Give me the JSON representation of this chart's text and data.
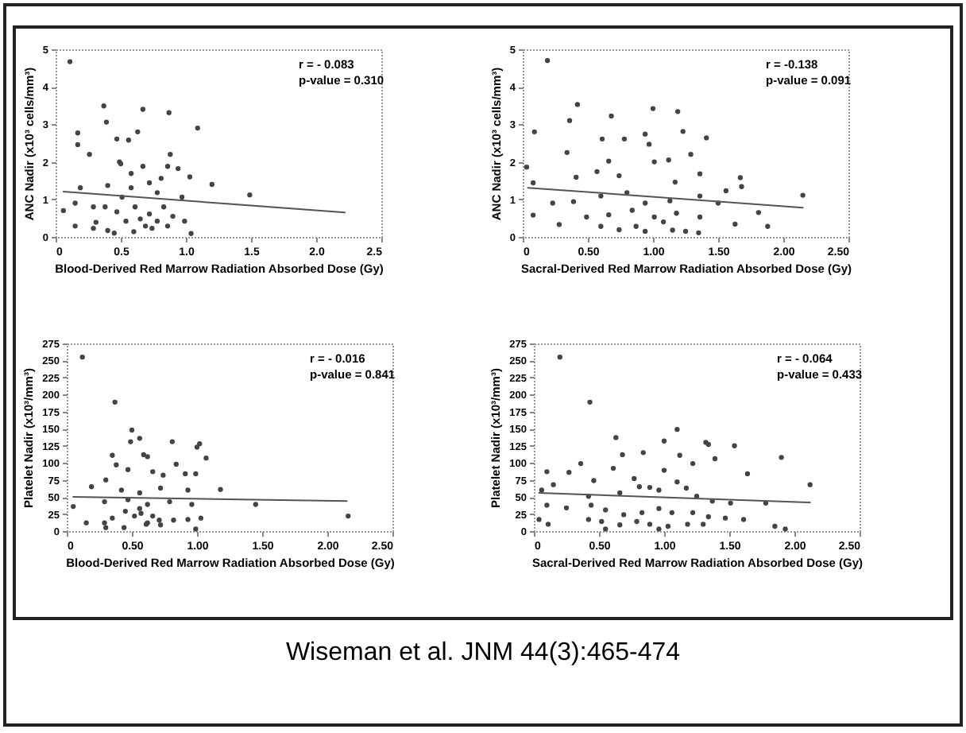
{
  "chart_data": [
    {
      "type": "scatter",
      "xlabel": "Blood-Derived Red Marrow Radiation Absorbed Dose (Gy)",
      "ylabel": "ANC Nadir (x10³ cells/mm³)",
      "xlim": [
        0,
        2.5
      ],
      "xticks": [
        0,
        0.5,
        {
          "value": 1,
          "label": "1.0"
        },
        1.5,
        {
          "value": 2,
          "label": "2.0"
        },
        2.5
      ],
      "ylim": [
        0,
        5
      ],
      "yticks": [
        0,
        1,
        2,
        3,
        4,
        5
      ],
      "marker": "circle",
      "annotations": [
        "r = - 0.083",
        "p-value = 0.310"
      ],
      "series": [
        {
          "type": "scatter",
          "color": "#444444",
          "x": [
            0.11,
            0.37,
            0.39,
            0.67,
            0.87,
            1.09,
            0.17,
            0.17,
            0.47,
            0.56,
            0.63,
            0.26,
            0.49,
            0.5,
            0.88,
            0.67,
            0.86,
            0.94,
            1.03,
            1.2,
            1.49,
            0.58,
            0.72,
            0.81,
            0.58,
            0.19,
            0.4,
            0.51,
            0.78,
            0.97,
            0.06,
            0.15,
            0.29,
            0.47,
            0.61,
            0.72,
            0.9,
            0.99,
            0.15,
            0.29,
            0.4,
            0.45,
            0.6,
            0.69,
            0.74,
            1.04,
            0.31,
            0.54,
            0.65,
            0.83,
            0.38,
            0.78,
            0.86
          ],
          "values": [
            4.67,
            3.49,
            3.06,
            3.4,
            3.31,
            2.9,
            2.77,
            2.46,
            2.61,
            2.58,
            2.8,
            2.2,
            2.0,
            1.95,
            2.2,
            1.88,
            1.88,
            1.82,
            1.6,
            1.4,
            1.12,
            1.69,
            1.44,
            1.56,
            1.31,
            1.31,
            1.37,
            1.06,
            1.18,
            1.06,
            0.7,
            0.9,
            0.8,
            0.67,
            0.8,
            0.61,
            0.55,
            0.42,
            0.29,
            0.23,
            0.17,
            0.1,
            0.14,
            0.29,
            0.23,
            0.09,
            0.39,
            0.42,
            0.48,
            0.8,
            0.8,
            0.42,
            0.29
          ]
        },
        {
          "type": "line",
          "color": "#555555",
          "marker": "none",
          "x": [
            0.06,
            2.22
          ],
          "values": [
            1.21,
            0.65
          ]
        }
      ]
    },
    {
      "type": "scatter",
      "xlabel": "Sacral-Derived Red Marrow Radiation Absorbed Dose (Gy)",
      "ylabel": "ANC Nadir (x10³ cells/mm³)",
      "xlim": [
        0,
        2.5
      ],
      "xticks": [
        0,
        {
          "value": 0.5,
          "label": "0.50"
        },
        {
          "value": 1,
          "label": "1.00"
        },
        {
          "value": 1.5,
          "label": "1.50"
        },
        {
          "value": 2,
          "label": "2.00"
        },
        {
          "value": 2.5,
          "label": "2.50"
        }
      ],
      "ylim": [
        0,
        5
      ],
      "yticks": [
        0,
        1,
        2,
        3,
        4,
        5
      ],
      "marker": "circle",
      "annotations": [
        "r = -0.138",
        "p-value = 0.091"
      ],
      "series": [
        {
          "type": "scatter",
          "color": "#444444",
          "x": [
            0.19,
            0.42,
            0.36,
            0.09,
            0.68,
            1.0,
            1.19,
            0.34,
            0.61,
            0.78,
            0.94,
            0.97,
            1.23,
            1.41,
            0.66,
            1.01,
            1.12,
            1.29,
            0.57,
            0.41,
            0.03,
            1.67,
            1.68,
            1.56,
            2.15,
            0.08,
            0.74,
            1.17,
            1.36,
            0.23,
            0.39,
            0.6,
            0.8,
            0.94,
            1.13,
            1.36,
            1.5,
            0.08,
            0.28,
            0.49,
            0.66,
            0.84,
            1.01,
            1.18,
            1.36,
            1.63,
            1.81,
            1.88,
            0.6,
            0.74,
            0.94,
            1.15,
            1.25,
            1.35,
            1.08,
            0.87
          ],
          "values": [
            4.7,
            3.53,
            3.1,
            2.8,
            3.22,
            3.42,
            3.34,
            2.25,
            2.61,
            2.61,
            2.74,
            2.47,
            2.81,
            2.64,
            2.02,
            2.0,
            2.05,
            2.2,
            1.74,
            1.59,
            1.86,
            1.58,
            1.34,
            1.23,
            1.11,
            1.44,
            1.63,
            1.46,
            1.68,
            0.9,
            0.94,
            1.09,
            1.18,
            0.9,
            0.96,
            1.09,
            0.9,
            0.58,
            0.33,
            0.53,
            0.59,
            0.71,
            0.53,
            0.63,
            0.53,
            0.34,
            0.65,
            0.28,
            0.28,
            0.19,
            0.15,
            0.18,
            0.15,
            0.11,
            0.4,
            0.28
          ]
        },
        {
          "type": "line",
          "color": "#555555",
          "marker": "none",
          "x": [
            0.04,
            2.15
          ],
          "values": [
            1.31,
            0.78
          ]
        }
      ]
    },
    {
      "type": "scatter",
      "xlabel": "Blood-Derived Red Marrow Radiation Absorbed Dose (Gy)",
      "ylabel": "Platelet Nadir (x10³/mm³)",
      "xlim": [
        0,
        2.5
      ],
      "xticks": [
        0,
        {
          "value": 0.5,
          "label": "0.50"
        },
        {
          "value": 1,
          "label": "1.00"
        },
        {
          "value": 1.5,
          "label": "1.50"
        },
        {
          "value": 2,
          "label": "2.00"
        },
        {
          "value": 2.5,
          "label": "2.50"
        }
      ],
      "ylim": [
        0,
        275
      ],
      "yticks": [
        0,
        25,
        50,
        75,
        100,
        125,
        150,
        175,
        200,
        225,
        250,
        275
      ],
      "marker": "circle",
      "annotations": [
        "r = - 0.016",
        "p-value = 0.841"
      ],
      "series": [
        {
          "type": "scatter",
          "color": "#444444",
          "x": [
            0.12,
            0.37,
            0.5,
            0.56,
            0.49,
            0.59,
            0.62,
            0.81,
            1.02,
            1.0,
            1.07,
            0.35,
            0.38,
            0.84,
            0.47,
            0.66,
            0.74,
            0.91,
            0.99,
            0.19,
            0.3,
            0.42,
            0.56,
            0.72,
            0.93,
            1.18,
            1.45,
            0.29,
            0.47,
            0.62,
            0.79,
            0.96,
            0.05,
            0.15,
            0.29,
            0.35,
            0.45,
            0.56,
            0.57,
            0.66,
            0.71,
            0.82,
            0.93,
            1.03,
            0.3,
            0.44,
            0.61,
            0.72,
            0.99,
            2.16,
            0.52,
            0.62
          ],
          "values": [
            255,
            189,
            148,
            136,
            131,
            112,
            109,
            131,
            128,
            123,
            107,
            111,
            97,
            98,
            90,
            87,
            82,
            84,
            84,
            65,
            75,
            60,
            56,
            63,
            60,
            61,
            39,
            43,
            46,
            39,
            43,
            39,
            36,
            12,
            12,
            19,
            29,
            33,
            26,
            22,
            16,
            16,
            17,
            19,
            5,
            5,
            10,
            9,
            3,
            22,
            22,
            12
          ]
        },
        {
          "type": "line",
          "color": "#555555",
          "marker": "none",
          "x": [
            0.05,
            2.15
          ],
          "values": [
            50,
            44
          ]
        }
      ]
    },
    {
      "type": "scatter",
      "xlabel": "Sacral-Derived Red Marrow Radiation Absorbed Dose (Gy)",
      "ylabel": "Platelet Nadir (x10³/mm³)",
      "xlim": [
        0,
        2.5
      ],
      "xticks": [
        0,
        {
          "value": 0.5,
          "label": "0.50"
        },
        {
          "value": 1,
          "label": "1.00"
        },
        {
          "value": 1.5,
          "label": "1.50"
        },
        {
          "value": 2,
          "label": "2.00"
        },
        {
          "value": 2.5,
          "label": "2.50"
        }
      ],
      "ylim": [
        0,
        275
      ],
      "yticks": [
        0,
        25,
        50,
        75,
        100,
        125,
        150,
        175,
        200,
        225,
        250,
        275
      ],
      "marker": "circle",
      "annotations": [
        "r = - 0.064",
        "p-value = 0.433"
      ],
      "series": [
        {
          "type": "scatter",
          "color": "#444444",
          "x": [
            0.2,
            0.43,
            1.1,
            0.63,
            1.0,
            1.32,
            1.34,
            1.54,
            1.9,
            1.12,
            0.84,
            1.39,
            0.36,
            0.68,
            0.1,
            0.27,
            1.0,
            1.64,
            1.22,
            0.61,
            0.46,
            0.77,
            0.89,
            1.1,
            0.15,
            0.06,
            0.42,
            0.66,
            0.81,
            0.96,
            1.17,
            1.25,
            1.37,
            1.51,
            1.78,
            2.12,
            0.1,
            0.25,
            0.44,
            0.55,
            0.69,
            0.83,
            0.96,
            1.06,
            1.22,
            1.34,
            1.47,
            1.61,
            0.04,
            0.11,
            0.42,
            0.52,
            0.66,
            0.79,
            0.89,
            1.03,
            1.18,
            1.3,
            1.85,
            1.93,
            0.55,
            0.96
          ],
          "values": [
            255,
            189,
            149,
            137,
            132,
            130,
            127,
            125,
            108,
            111,
            115,
            106,
            99,
            112,
            87,
            86,
            89,
            84,
            99,
            92,
            74,
            77,
            64,
            72,
            68,
            60,
            51,
            56,
            65,
            60,
            63,
            51,
            44,
            41,
            41,
            68,
            38,
            34,
            38,
            31,
            24,
            27,
            33,
            27,
            27,
            21,
            19,
            17,
            17,
            10,
            17,
            14,
            9,
            14,
            10,
            7,
            10,
            10,
            7,
            3,
            3,
            3
          ]
        },
        {
          "type": "line",
          "color": "#555555",
          "marker": "none",
          "x": [
            0.04,
            2.12
          ],
          "values": [
            56,
            42
          ]
        }
      ]
    },
    {
      "type": "other",
      "annotations": [
        "Wiseman et al. JNM 44(3):465-474"
      ]
    }
  ]
}
